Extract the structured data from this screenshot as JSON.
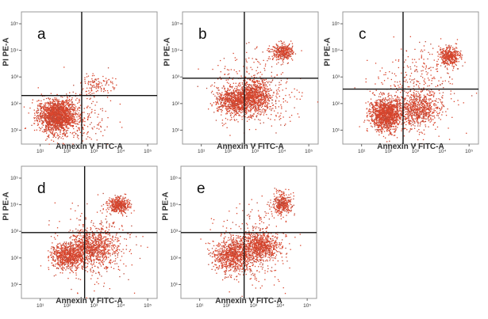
{
  "chart_data": [
    {
      "type": "scatter",
      "panel_label": "a",
      "xlabel": "Annexin V FITC-A",
      "ylabel": "PI PE-A",
      "x_scale": "log",
      "y_scale": "log",
      "xlim": [
        2,
        224000
      ],
      "ylim": [
        3,
        280000
      ],
      "x_ticks": [
        "10¹",
        "10²",
        "10³",
        "10⁴",
        "10⁵"
      ],
      "y_ticks": [
        "10¹",
        "10²",
        "10³",
        "10⁴",
        "10⁵"
      ],
      "quadrant_gate": {
        "x": 350,
        "y": 200
      },
      "clusters": [
        {
          "x": 40,
          "y": 35,
          "spread_x_decades": 0.35,
          "spread_y_decades": 0.3,
          "n": 1800
        },
        {
          "x": 1250,
          "y": 500,
          "spread_x_decades": 0.3,
          "spread_y_decades": 0.2,
          "n": 120
        },
        {
          "x": 300,
          "y": 30,
          "spread_x_decades": 0.6,
          "spread_y_decades": 0.6,
          "n": 200
        }
      ]
    },
    {
      "type": "scatter",
      "panel_label": "b",
      "xlabel": "Annexin V FITC-A",
      "ylabel": "PI PE-A",
      "x_scale": "log",
      "y_scale": "log",
      "xlim": [
        2,
        224000
      ],
      "ylim": [
        3,
        280000
      ],
      "x_ticks": [
        "10¹",
        "10²",
        "10³",
        "10⁴",
        "10⁵"
      ],
      "y_ticks": [
        "10¹",
        "10²",
        "10³",
        "10⁴",
        "10⁵"
      ],
      "quadrant_gate": {
        "x": 400,
        "y": 900
      },
      "clusters": [
        {
          "x": 160,
          "y": 125,
          "spread_x_decades": 0.35,
          "spread_y_decades": 0.25,
          "n": 700
        },
        {
          "x": 800,
          "y": 200,
          "spread_x_decades": 0.35,
          "spread_y_decades": 0.3,
          "n": 800
        },
        {
          "x": 10000,
          "y": 9000,
          "spread_x_decades": 0.2,
          "spread_y_decades": 0.15,
          "n": 350
        },
        {
          "x": 1000,
          "y": 300,
          "spread_x_decades": 0.7,
          "spread_y_decades": 0.7,
          "n": 400
        }
      ]
    },
    {
      "type": "scatter",
      "panel_label": "c",
      "xlabel": "Annexin V FITC-A",
      "ylabel": "PI PE-A",
      "x_scale": "log",
      "y_scale": "log",
      "xlim": [
        2,
        224000
      ],
      "ylim": [
        3,
        280000
      ],
      "x_ticks": [
        "10¹",
        "10²",
        "10³",
        "10⁴",
        "10⁵"
      ],
      "y_ticks": [
        "10¹",
        "10²",
        "10³",
        "10⁴",
        "10⁵"
      ],
      "quadrant_gate": {
        "x": 350,
        "y": 350
      },
      "clusters": [
        {
          "x": 80,
          "y": 40,
          "spread_x_decades": 0.3,
          "spread_y_decades": 0.3,
          "n": 1300
        },
        {
          "x": 1250,
          "y": 60,
          "spread_x_decades": 0.35,
          "spread_y_decades": 0.3,
          "n": 600
        },
        {
          "x": 18000,
          "y": 6300,
          "spread_x_decades": 0.2,
          "spread_y_decades": 0.17,
          "n": 400
        },
        {
          "x": 1000,
          "y": 300,
          "spread_x_decades": 0.8,
          "spread_y_decades": 0.8,
          "n": 400
        }
      ]
    },
    {
      "type": "scatter",
      "panel_label": "d",
      "xlabel": "Annexin V FITC-A",
      "ylabel": "PI PE-A",
      "x_scale": "log",
      "y_scale": "log",
      "xlim": [
        2,
        224000
      ],
      "ylim": [
        3,
        280000
      ],
      "x_ticks": [
        "10¹",
        "10²",
        "10³",
        "10⁴",
        "10⁵"
      ],
      "y_ticks": [
        "10¹",
        "10²",
        "10³",
        "10⁴",
        "10⁵"
      ],
      "quadrant_gate": {
        "x": 450,
        "y": 900
      },
      "clusters": [
        {
          "x": 100,
          "y": 125,
          "spread_x_decades": 0.3,
          "spread_y_decades": 0.25,
          "n": 700
        },
        {
          "x": 800,
          "y": 250,
          "spread_x_decades": 0.4,
          "spread_y_decades": 0.3,
          "n": 700
        },
        {
          "x": 8000,
          "y": 10000,
          "spread_x_decades": 0.2,
          "spread_y_decades": 0.15,
          "n": 400
        },
        {
          "x": 1000,
          "y": 300,
          "spread_x_decades": 0.7,
          "spread_y_decades": 0.7,
          "n": 400
        }
      ]
    },
    {
      "type": "scatter",
      "panel_label": "e",
      "xlabel": "Annexin V FITC-A",
      "ylabel": "PI PE-A",
      "x_scale": "log",
      "y_scale": "log",
      "xlim": [
        2,
        224000
      ],
      "ylim": [
        3,
        280000
      ],
      "x_ticks": [
        "10¹",
        "10²",
        "10³",
        "10⁴",
        "10⁵"
      ],
      "y_ticks": [
        "10¹",
        "10²",
        "10³",
        "10⁴",
        "10⁵"
      ],
      "quadrant_gate": {
        "x": 450,
        "y": 900
      },
      "clusters": [
        {
          "x": 160,
          "y": 125,
          "spread_x_decades": 0.35,
          "spread_y_decades": 0.3,
          "n": 800
        },
        {
          "x": 1600,
          "y": 300,
          "spread_x_decades": 0.35,
          "spread_y_decades": 0.25,
          "n": 700
        },
        {
          "x": 11000,
          "y": 11000,
          "spread_x_decades": 0.17,
          "spread_y_decades": 0.2,
          "n": 350
        },
        {
          "x": 1000,
          "y": 300,
          "spread_x_decades": 0.7,
          "spread_y_decades": 0.7,
          "n": 350
        }
      ]
    }
  ],
  "colors": {
    "points": "#d9442b",
    "points_light": "#b84a3a",
    "frame": "#999999",
    "gate": "#111111"
  }
}
